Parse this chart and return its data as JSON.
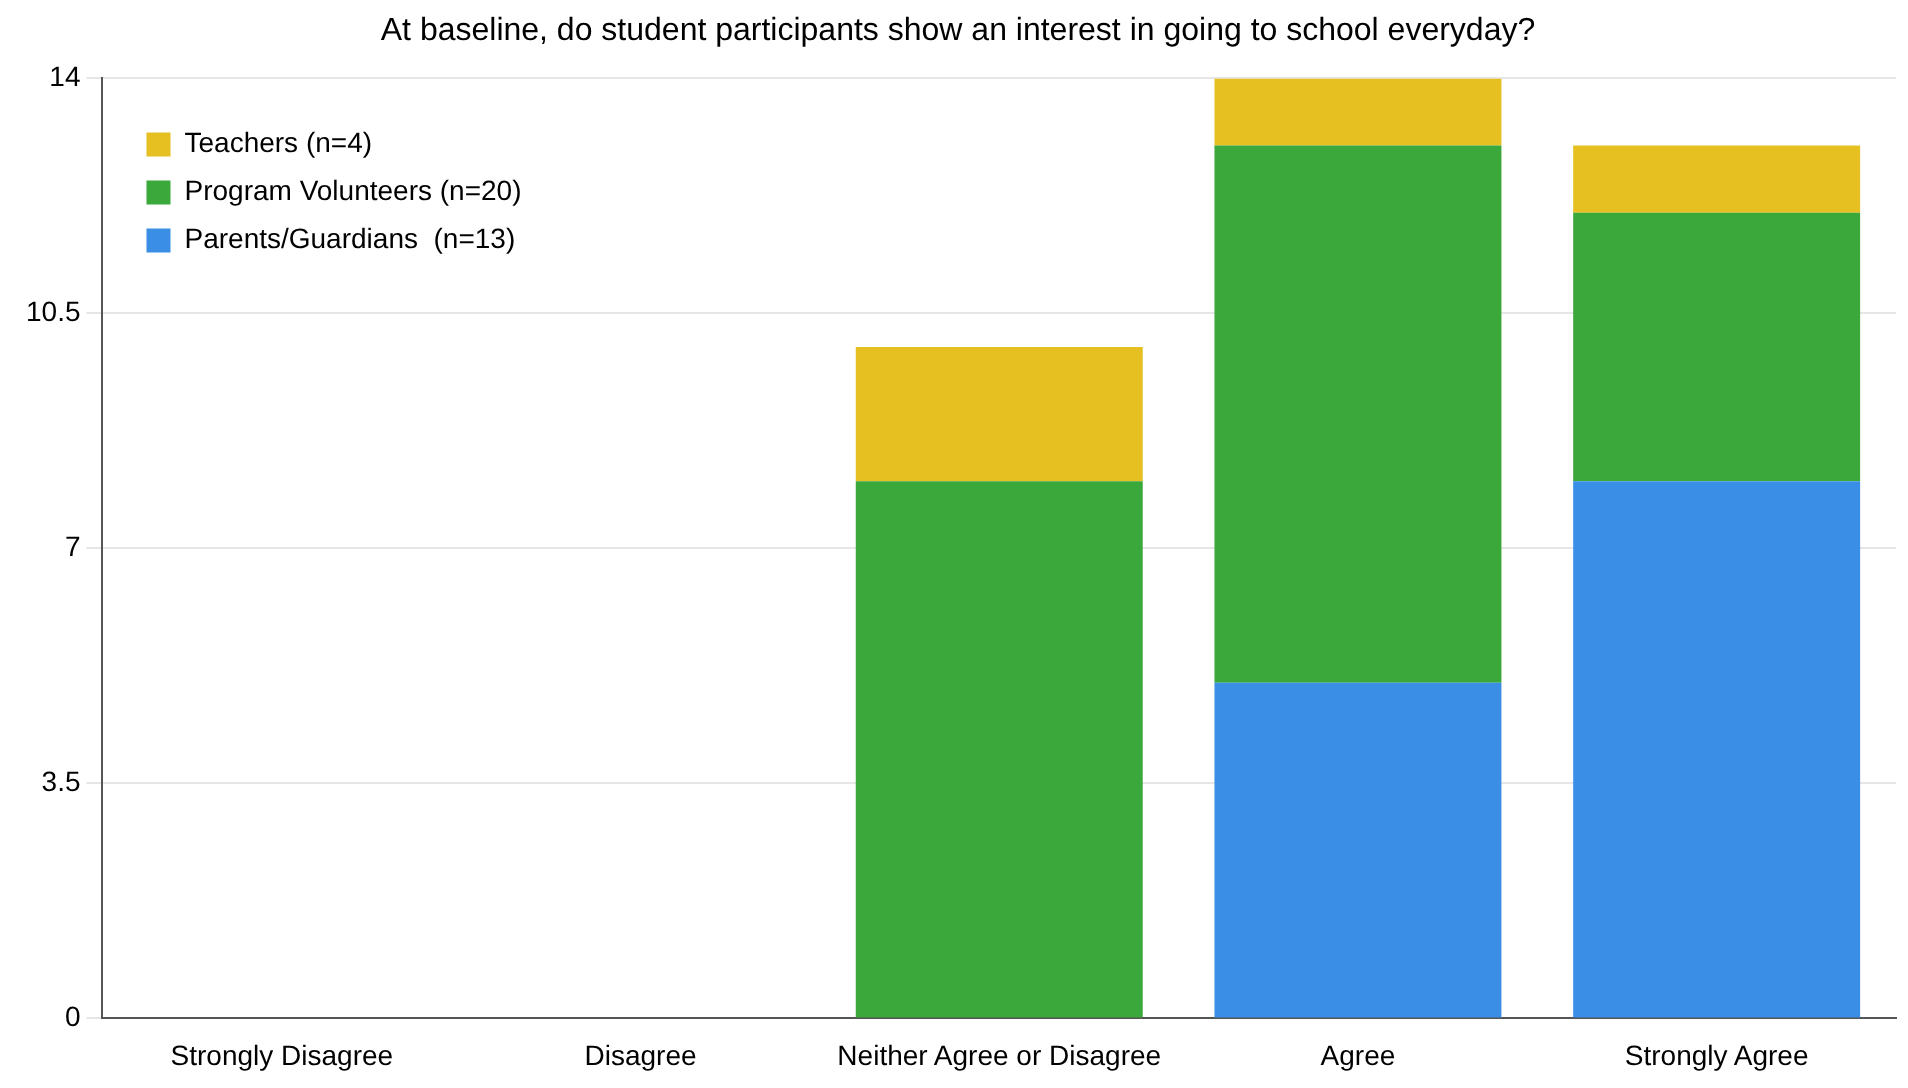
{
  "chart_data": {
    "type": "bar",
    "title": "At baseline, do student participants show an interest in going to school everyday?",
    "categories": [
      "Strongly Disagree",
      "Disagree",
      "Neither Agree or Disagree",
      "Agree",
      "Strongly Agree"
    ],
    "stacked": true,
    "series": [
      {
        "name": "Parents/Guardians  (n=13)",
        "color": "#3a8ee6",
        "values": [
          0,
          0,
          0,
          5,
          8
        ]
      },
      {
        "name": "Program Volunteers (n=20)",
        "color": "#3aa83a",
        "values": [
          0,
          0,
          8,
          8,
          4
        ]
      },
      {
        "name": "Teachers (n=4)",
        "color": "#e6c020",
        "values": [
          0,
          0,
          2,
          1,
          1
        ]
      }
    ],
    "ylim": [
      0,
      14
    ],
    "yticks": [
      0,
      3.5,
      7,
      10.5,
      14
    ],
    "grid": "y",
    "legend": "top left"
  }
}
